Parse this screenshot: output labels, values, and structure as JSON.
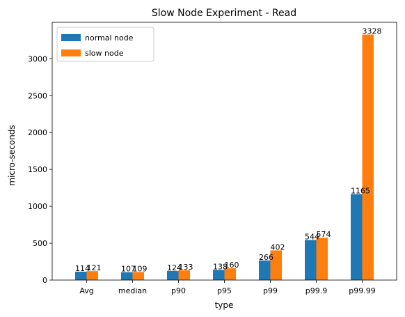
{
  "chart_data": {
    "type": "bar",
    "title": "Slow Node Experiment - Read",
    "xlabel": "type",
    "ylabel": "micro-seconds",
    "categories": [
      "Avg",
      "median",
      "p90",
      "p95",
      "p99",
      "p99.9",
      "p99.99"
    ],
    "series": [
      {
        "name": "normal node",
        "color": "#1f77b4",
        "values": [
          114,
          107,
          124,
          138,
          266,
          544,
          1165
        ]
      },
      {
        "name": "slow node",
        "color": "#ff7f0e",
        "values": [
          121,
          109,
          133,
          160,
          402,
          574,
          3328
        ]
      }
    ],
    "yticks": [
      0,
      500,
      1000,
      1500,
      2000,
      2500,
      3000
    ],
    "ylim": [
      0,
      3494
    ],
    "legend": "top-left",
    "grid": false
  }
}
